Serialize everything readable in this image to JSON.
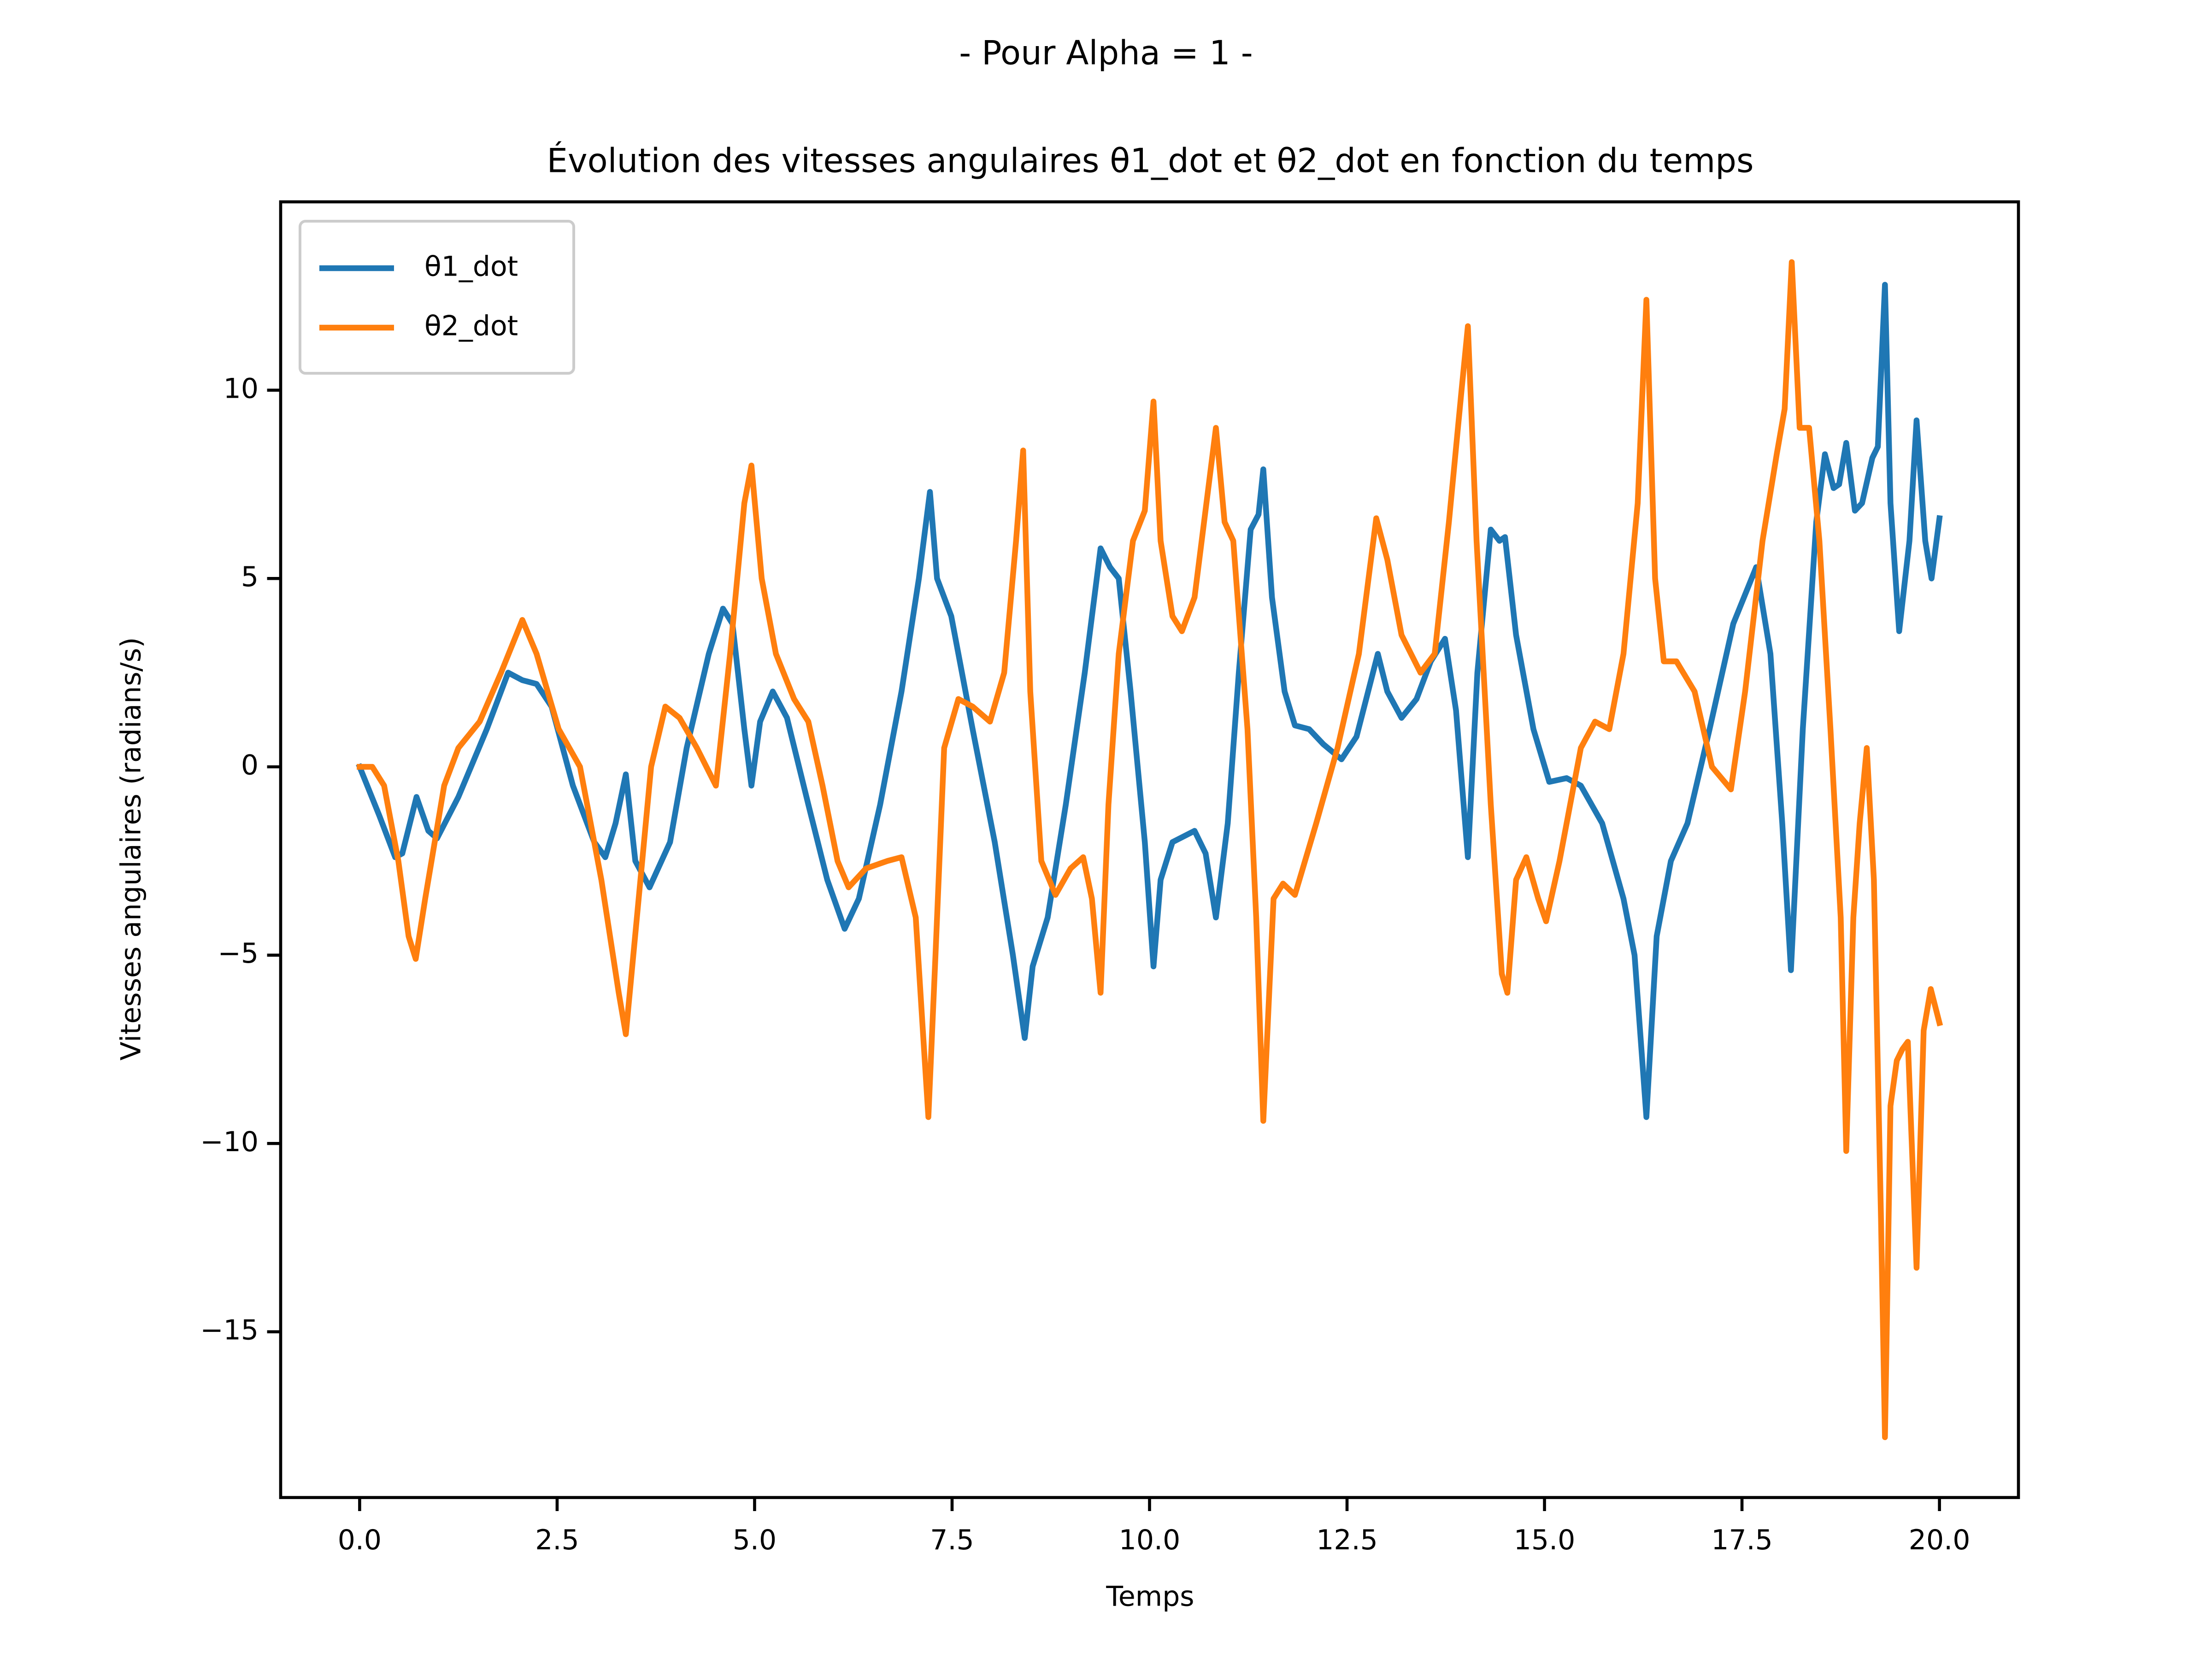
{
  "chart_data": {
    "type": "line",
    "suptitle": "- Pour Alpha = 1 -",
    "title": "Évolution des vitesses angulaires θ1_dot et θ2_dot en fonction du temps",
    "xlabel": "Temps",
    "ylabel": "Vitesses angulaires (radians/s)",
    "xlim": [
      -1,
      21
    ],
    "ylim": [
      -19.4,
      15.0
    ],
    "xticks": [
      {
        "value": 0,
        "label": "0.0"
      },
      2.5,
      {
        "value": 5,
        "label": "5.0"
      },
      7.5,
      {
        "value": 10,
        "label": "10.0"
      },
      12.5,
      {
        "value": 15,
        "label": "15.0"
      },
      17.5,
      {
        "value": 20,
        "label": "20.0"
      }
    ],
    "yticks": [
      {
        "value": -15,
        "label": "−15"
      },
      {
        "value": -10,
        "label": "−10"
      },
      {
        "value": -5,
        "label": "−5"
      },
      0,
      5,
      10
    ],
    "grid": false,
    "legend": "upper left",
    "series": [
      {
        "name": "θ1_dot",
        "color": "#1f77b4",
        "x": [
          0,
          0.25,
          0.45,
          0.54,
          0.72,
          0.87,
          0.98,
          1.25,
          1.61,
          1.88,
          2.06,
          2.24,
          2.43,
          2.7,
          2.97,
          3.11,
          3.24,
          3.37,
          3.49,
          3.67,
          3.93,
          4.14,
          4.42,
          4.6,
          4.72,
          4.87,
          4.96,
          5.07,
          5.23,
          5.41,
          5.68,
          5.92,
          6.14,
          6.32,
          6.59,
          6.86,
          7.08,
          7.22,
          7.31,
          7.49,
          7.76,
          8.04,
          8.27,
          8.42,
          8.52,
          8.71,
          8.94,
          9.18,
          9.38,
          9.5,
          9.61,
          9.76,
          9.94,
          10.05,
          10.14,
          10.29,
          10.57,
          10.71,
          10.84,
          10.99,
          11.13,
          11.28,
          11.38,
          11.44,
          11.55,
          11.71,
          11.84,
          12.02,
          12.2,
          12.43,
          12.62,
          12.89,
          13.01,
          13.19,
          13.38,
          13.56,
          13.74,
          13.88,
          14.03,
          14.15,
          14.32,
          14.43,
          14.5,
          14.64,
          14.86,
          15.06,
          15.28,
          15.46,
          15.73,
          16.0,
          16.14,
          16.29,
          16.42,
          16.6,
          16.81,
          17.09,
          17.39,
          17.68,
          17.86,
          18.01,
          18.12,
          18.27,
          18.44,
          18.55,
          18.66,
          18.73,
          18.82,
          18.93,
          19.02,
          19.15,
          19.22,
          19.31,
          19.38,
          19.49,
          19.62,
          19.71,
          19.82,
          19.9,
          20.0
        ],
        "values": [
          0,
          -1.3,
          -2.4,
          -2.3,
          -0.8,
          -1.7,
          -1.9,
          -0.8,
          1.0,
          2.5,
          2.3,
          2.2,
          1.6,
          -0.5,
          -2.0,
          -2.4,
          -1.5,
          -0.2,
          -2.5,
          -3.2,
          -2.0,
          0.5,
          3.0,
          4.2,
          3.8,
          1.0,
          -0.5,
          1.2,
          2.0,
          1.3,
          -1.0,
          -3.0,
          -4.3,
          -3.5,
          -1.0,
          2.0,
          5.0,
          7.3,
          5.0,
          4.0,
          1.0,
          -2.0,
          -5.0,
          -7.2,
          -5.3,
          -4.0,
          -1.0,
          2.5,
          5.8,
          5.3,
          5.0,
          2.0,
          -2.0,
          -5.3,
          -3.0,
          -2.0,
          -1.7,
          -2.3,
          -4.0,
          -1.5,
          2.5,
          6.3,
          6.7,
          7.9,
          4.5,
          2.0,
          1.1,
          1.0,
          0.6,
          0.2,
          0.8,
          3.0,
          2.0,
          1.3,
          1.8,
          2.8,
          3.4,
          1.5,
          -2.4,
          2.5,
          6.3,
          6.0,
          6.1,
          3.5,
          1.0,
          -0.4,
          -0.3,
          -0.5,
          -1.5,
          -3.5,
          -5.0,
          -9.3,
          -4.5,
          -2.5,
          -1.5,
          1.0,
          3.8,
          5.3,
          3.0,
          -1.5,
          -5.4,
          1.0,
          6.5,
          8.3,
          7.4,
          7.5,
          8.6,
          6.8,
          7.0,
          8.2,
          8.5,
          12.8,
          7.0,
          3.6,
          6.0,
          9.2,
          6.0,
          5.0,
          6.6
        ]
      },
      {
        "name": "θ2_dot",
        "color": "#ff7f0e",
        "x": [
          0,
          0.16,
          0.31,
          0.49,
          0.62,
          0.71,
          0.83,
          1.07,
          1.25,
          1.52,
          1.79,
          2.06,
          2.24,
          2.52,
          2.79,
          3.06,
          3.28,
          3.37,
          3.51,
          3.69,
          3.87,
          4.05,
          4.27,
          4.51,
          4.69,
          4.87,
          4.96,
          5.09,
          5.27,
          5.5,
          5.68,
          5.86,
          6.05,
          6.19,
          6.41,
          6.68,
          6.86,
          7.04,
          7.13,
          7.2,
          7.29,
          7.4,
          7.58,
          7.76,
          7.98,
          8.16,
          8.31,
          8.4,
          8.49,
          8.63,
          8.81,
          9.0,
          9.16,
          9.27,
          9.38,
          9.48,
          9.61,
          9.79,
          9.94,
          10.05,
          10.14,
          10.29,
          10.41,
          10.57,
          10.75,
          10.84,
          10.95,
          11.06,
          11.24,
          11.35,
          11.44,
          11.57,
          11.69,
          11.84,
          12.11,
          12.38,
          12.65,
          12.87,
          13.01,
          13.19,
          13.43,
          13.61,
          13.79,
          13.95,
          14.03,
          14.14,
          14.32,
          14.46,
          14.53,
          14.64,
          14.77,
          14.92,
          15.02,
          15.19,
          15.46,
          15.64,
          15.82,
          16.0,
          16.18,
          16.29,
          16.4,
          16.51,
          16.67,
          16.9,
          17.12,
          17.36,
          17.54,
          17.76,
          17.94,
          18.04,
          18.13,
          18.23,
          18.35,
          18.48,
          18.62,
          18.75,
          18.82,
          18.91,
          18.99,
          19.08,
          19.17,
          19.26,
          19.31,
          19.38,
          19.46,
          19.53,
          19.6,
          19.71,
          19.8,
          19.89,
          20.0
        ],
        "values": [
          0,
          0.0,
          -0.5,
          -2.5,
          -4.5,
          -5.1,
          -3.5,
          -0.5,
          0.5,
          1.2,
          2.5,
          3.9,
          3.0,
          1.0,
          0.0,
          -3.0,
          -6.0,
          -7.1,
          -4.0,
          0.0,
          1.6,
          1.3,
          0.5,
          -0.5,
          3.0,
          7.0,
          8.0,
          5.0,
          3.0,
          1.8,
          1.2,
          -0.5,
          -2.5,
          -3.2,
          -2.7,
          -2.5,
          -2.4,
          -4.0,
          -7.0,
          -9.3,
          -5.0,
          0.5,
          1.8,
          1.6,
          1.2,
          2.5,
          6.0,
          8.4,
          2.0,
          -2.5,
          -3.4,
          -2.7,
          -2.4,
          -3.5,
          -6.0,
          -1.0,
          3.0,
          6.0,
          6.8,
          9.7,
          6.0,
          4.0,
          3.6,
          4.5,
          7.5,
          9.0,
          6.5,
          6.0,
          1.0,
          -4.0,
          -9.4,
          -3.5,
          -3.1,
          -3.4,
          -1.5,
          0.5,
          3.0,
          6.6,
          5.5,
          3.5,
          2.5,
          3.0,
          6.5,
          10.0,
          11.7,
          6.0,
          -1.0,
          -5.5,
          -6.0,
          -3.0,
          -2.4,
          -3.5,
          -4.1,
          -2.5,
          0.5,
          1.2,
          1.0,
          3.0,
          7.0,
          12.4,
          5.0,
          2.8,
          2.8,
          2.0,
          0.0,
          -0.6,
          2.0,
          6.0,
          8.3,
          9.5,
          13.4,
          9.0,
          9.0,
          6.0,
          1.0,
          -4.0,
          -10.2,
          -4.0,
          -1.5,
          0.5,
          -3.0,
          -12.0,
          -17.8,
          -9.0,
          -7.8,
          -7.5,
          -7.3,
          -13.3,
          -7.0,
          -5.9,
          -6.8
        ]
      }
    ]
  }
}
